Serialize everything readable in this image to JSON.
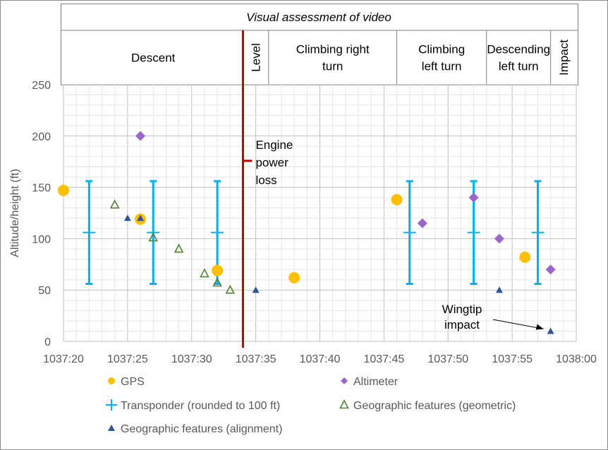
{
  "chart_data": {
    "type": "scatter",
    "title": "Visual assessment of video",
    "xlabel": "",
    "ylabel": "Altitude/height (ft)",
    "x_range": [
      "1037:20",
      "1038:00"
    ],
    "x_ticks": [
      "1037:20",
      "1037:25",
      "1037:30",
      "1037:35",
      "1037:40",
      "1037:45",
      "1037:50",
      "1037:55",
      "1038:00"
    ],
    "ylim": [
      0,
      250
    ],
    "y_ticks": [
      "0",
      "50",
      "100",
      "150",
      "200",
      "250"
    ],
    "grid": true,
    "legend_position": "bottom",
    "phases": [
      {
        "label": "Descent",
        "start": "1037:20",
        "end": "1037:34"
      },
      {
        "label": "Level",
        "start": "1037:34",
        "end": "1037:36"
      },
      {
        "label": "Climbing right turn",
        "start": "1037:36",
        "end": "1037:46"
      },
      {
        "label": "Climbing left turn",
        "start": "1037:46",
        "end": "1037:53"
      },
      {
        "label": "Descending left turn",
        "start": "1037:53",
        "end": "1037:58"
      },
      {
        "label": "Impact",
        "start": "1037:58",
        "end": "1038:00"
      }
    ],
    "series": [
      {
        "name": "GPS",
        "marker": "circle",
        "color": "#FFC000",
        "points": [
          {
            "x": "1037:20",
            "y": 147
          },
          {
            "x": "1037:26",
            "y": 119
          },
          {
            "x": "1037:32",
            "y": 69
          },
          {
            "x": "1037:38",
            "y": 62
          },
          {
            "x": "1037:46",
            "y": 138
          },
          {
            "x": "1037:56",
            "y": 82
          }
        ]
      },
      {
        "name": "Altimeter",
        "marker": "diamond",
        "color": "#9966CC",
        "points": [
          {
            "x": "1037:26",
            "y": 200
          },
          {
            "x": "1037:48",
            "y": 115
          },
          {
            "x": "1037:52",
            "y": 140
          },
          {
            "x": "1037:54",
            "y": 100
          },
          {
            "x": "1037:58",
            "y": 70
          }
        ]
      },
      {
        "name": "Transponder (rounded to 100 ft)",
        "marker": "plus-errorbar",
        "color": "#00B0F0",
        "error_low": 56,
        "error_high": 156,
        "points": [
          {
            "x": "1037:22",
            "y": 106
          },
          {
            "x": "1037:27",
            "y": 106
          },
          {
            "x": "1037:32",
            "y": 106
          },
          {
            "x": "1037:47",
            "y": 106
          },
          {
            "x": "1037:52",
            "y": 106
          },
          {
            "x": "1037:57",
            "y": 106
          }
        ]
      },
      {
        "name": "Geographic features (geometric)",
        "marker": "open-triangle",
        "color": "#548235",
        "points": [
          {
            "x": "1037:24",
            "y": 133
          },
          {
            "x": "1037:27",
            "y": 101
          },
          {
            "x": "1037:29",
            "y": 90
          },
          {
            "x": "1037:31",
            "y": 66
          },
          {
            "x": "1037:32",
            "y": 57
          },
          {
            "x": "1037:33",
            "y": 50
          }
        ]
      },
      {
        "name": "Geographic features (alignment)",
        "marker": "filled-triangle",
        "color": "#2F5597",
        "points": [
          {
            "x": "1037:25",
            "y": 120
          },
          {
            "x": "1037:26",
            "y": 120
          },
          {
            "x": "1037:35",
            "y": 50
          },
          {
            "x": "1037:54",
            "y": 50
          },
          {
            "x": "1037:58",
            "y": 10
          }
        ]
      }
    ],
    "events": [
      {
        "x": "1037:34",
        "label": "Engine power loss",
        "color": "#C00000"
      }
    ],
    "annotations": [
      {
        "label": "Wingtip impact",
        "x": "1037:58",
        "y": 10
      }
    ]
  },
  "labels": {
    "engine_loss": [
      "Engine",
      "power",
      "loss"
    ],
    "wingtip": [
      "Wingtip",
      "impact"
    ],
    "phase_lines": {
      "Descent": [
        "Descent"
      ],
      "Climbing right turn": [
        "Climbing right",
        "turn"
      ],
      "Climbing left turn": [
        "Climbing",
        "left turn"
      ],
      "Descending left turn": [
        "Descending",
        "left turn"
      ]
    }
  }
}
